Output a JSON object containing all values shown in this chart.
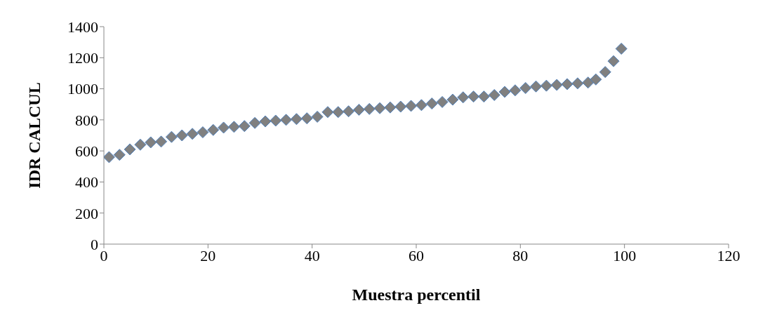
{
  "chart_data": {
    "type": "scatter",
    "xlabel": "Muestra percentil",
    "ylabel": "IDR CALCUL",
    "x": [
      1,
      3,
      5,
      7,
      9,
      11,
      13,
      15,
      17,
      19,
      21,
      23,
      25,
      27,
      29,
      31,
      33,
      35,
      37,
      39,
      41,
      43,
      45,
      47,
      49,
      51,
      53,
      55,
      57,
      59,
      61,
      63,
      65,
      67,
      69,
      71,
      73,
      75,
      77,
      79,
      81,
      83,
      85,
      87,
      89,
      91,
      93,
      94.5,
      96.3,
      97.9,
      99.4
    ],
    "series": [
      {
        "color": "#808080",
        "values": [
          560,
          575,
          610,
          640,
          655,
          660,
          690,
          700,
          710,
          720,
          735,
          750,
          755,
          760,
          780,
          790,
          795,
          800,
          805,
          810,
          820,
          850,
          850,
          855,
          865,
          870,
          875,
          880,
          885,
          890,
          895,
          905,
          915,
          930,
          945,
          950,
          950,
          960,
          980,
          990,
          1005,
          1015,
          1020,
          1025,
          1030,
          1035,
          1040,
          1060,
          1108,
          1178,
          1258
        ]
      }
    ],
    "xlim": [
      0,
      120
    ],
    "xticks": [
      0,
      20,
      40,
      60,
      80,
      100,
      120
    ],
    "ylim": [
      0,
      1400
    ],
    "yticks": [
      0,
      200,
      400,
      600,
      800,
      1000,
      1200,
      1400
    ],
    "grid": false,
    "legend": false,
    "marker": "diamond"
  }
}
